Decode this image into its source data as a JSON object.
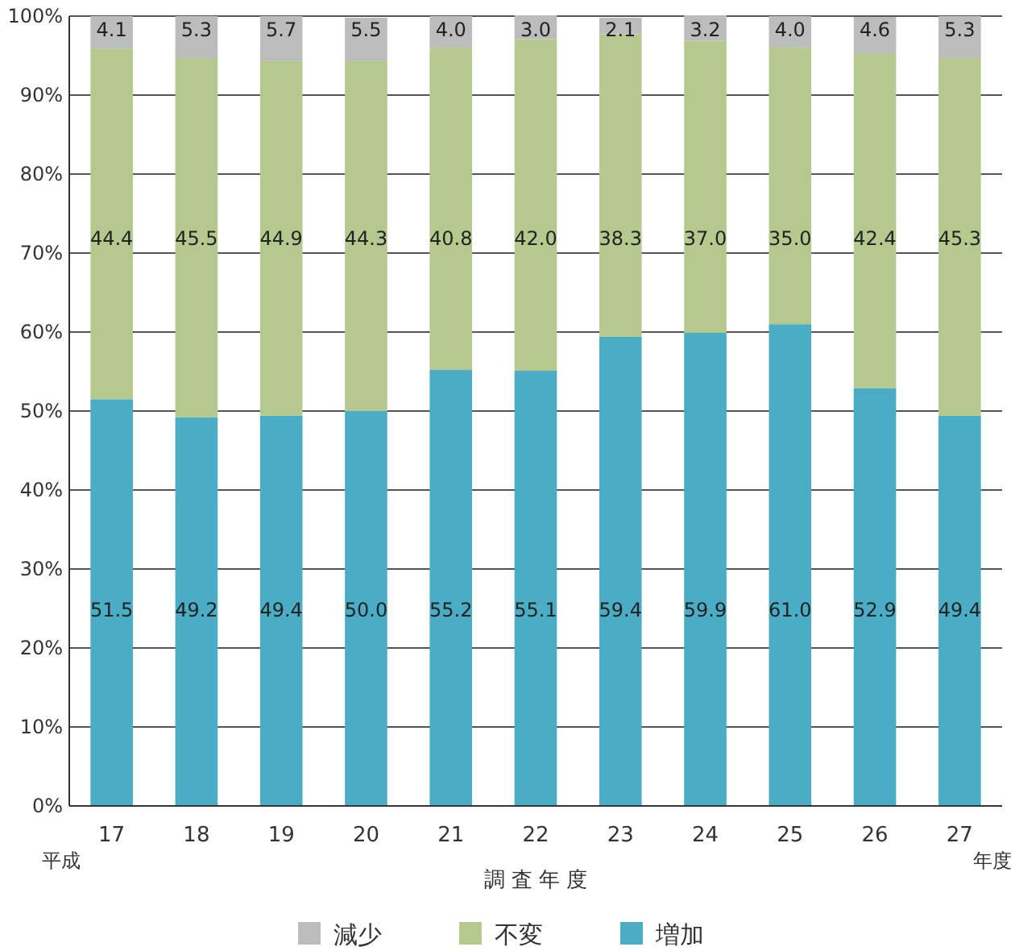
{
  "chart_data": {
    "type": "bar",
    "stacked": true,
    "categories": [
      "17",
      "18",
      "19",
      "20",
      "21",
      "22",
      "23",
      "24",
      "25",
      "26",
      "27"
    ],
    "series": [
      {
        "name": "増加",
        "color": "#4bacc6",
        "values": [
          51.5,
          49.2,
          49.4,
          50.0,
          55.2,
          55.1,
          59.4,
          59.9,
          61.0,
          52.9,
          49.4
        ],
        "value_labels": [
          "51.5",
          "49.2",
          "49.4",
          "50.0",
          "55.2",
          "55.1",
          "59.4",
          "59.9",
          "61.0",
          "52.9",
          "49.4"
        ]
      },
      {
        "name": "不変",
        "color": "#b5c98e",
        "values": [
          44.4,
          45.5,
          44.9,
          44.3,
          40.8,
          42.0,
          38.3,
          37.0,
          35.0,
          42.4,
          45.3
        ],
        "value_labels": [
          "44.4",
          "45.5",
          "44.9",
          "44.3",
          "40.8",
          "42.0",
          "38.3",
          "37.0",
          "35.0",
          "42.4",
          "45.3"
        ]
      },
      {
        "name": "減少",
        "color": "#bcbcbc",
        "values": [
          4.1,
          5.3,
          5.7,
          5.5,
          4.0,
          3.0,
          2.1,
          3.2,
          4.0,
          4.6,
          5.3
        ],
        "value_labels": [
          "4.1",
          "5.3",
          "5.7",
          "5.5",
          "4.0",
          "3.0",
          "2.1",
          "3.2",
          "4.0",
          "4.6",
          "5.3"
        ]
      }
    ],
    "ylim": [
      0,
      100
    ],
    "yticks": [
      {
        "value": 0,
        "label": "0%"
      },
      {
        "value": 10,
        "label": "10%"
      },
      {
        "value": 20,
        "label": "20%"
      },
      {
        "value": 30,
        "label": "30%"
      },
      {
        "value": 40,
        "label": "40%"
      },
      {
        "value": 50,
        "label": "50%"
      },
      {
        "value": 60,
        "label": "60%"
      },
      {
        "value": 70,
        "label": "70%"
      },
      {
        "value": 80,
        "label": "80%"
      },
      {
        "value": 90,
        "label": "90%"
      },
      {
        "value": 100,
        "label": "100%"
      }
    ],
    "xlabel": "調 査 年 度",
    "annotations": [
      "平成",
      "年度"
    ],
    "grid": "y",
    "legend": "bottom"
  }
}
